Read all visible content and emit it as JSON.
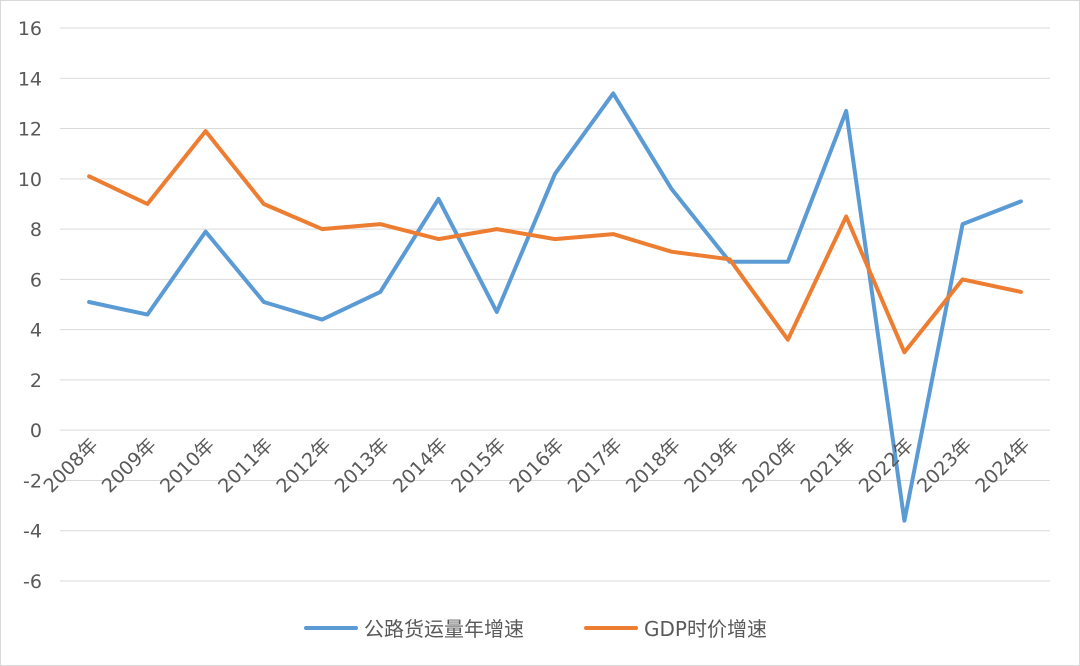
{
  "chart_data": {
    "type": "line",
    "title": "",
    "xlabel": "",
    "ylabel": "",
    "ylim": [
      -6,
      16
    ],
    "yticks": [
      -6,
      -4,
      -2,
      0,
      2,
      4,
      6,
      8,
      10,
      12,
      14,
      16
    ],
    "grid": true,
    "legend_position": "bottom",
    "categories": [
      "2008年",
      "2009年",
      "2010年",
      "2011年",
      "2012年",
      "2013年",
      "2014年",
      "2015年",
      "2016年",
      "2017年",
      "2018年",
      "2019年",
      "2020年",
      "2021年",
      "2022年",
      "2023年",
      "2024年"
    ],
    "series": [
      {
        "name": "公路货运量年增速",
        "color": "#5b9bd5",
        "values": [
          5.1,
          4.6,
          7.9,
          5.1,
          4.4,
          5.5,
          9.2,
          4.7,
          10.2,
          13.4,
          9.6,
          6.7,
          6.7,
          12.7,
          -3.6,
          8.2,
          9.1
        ]
      },
      {
        "name": "GDP时价增速",
        "color": "#ed7d31",
        "values": [
          10.1,
          9.0,
          11.9,
          9.0,
          8.0,
          8.2,
          7.6,
          8.0,
          7.6,
          7.8,
          7.1,
          6.8,
          3.6,
          8.5,
          3.1,
          6.0,
          5.5
        ]
      }
    ]
  }
}
